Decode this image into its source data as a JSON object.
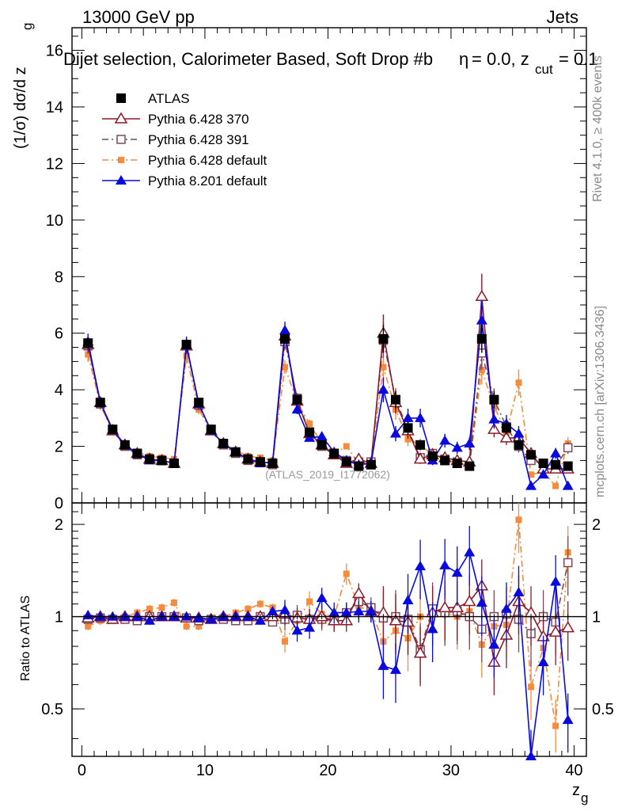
{
  "header": {
    "left": "13000 GeV pp",
    "right": "Jets"
  },
  "title": "Dijet selection, Calorimeter Based, Soft Drop #b",
  "title_suffix": "= 0.0, z",
  "title_sub": "cut",
  "title_end": "= 0.1",
  "title_eta": "η",
  "side_label_top": "Rivet 4.1.0, ≥ 400k events",
  "side_label_bottom": "mcplots.cern.ch [arXiv:1306.3436]",
  "watermark": "(ATLAS_2019_I1772062)",
  "ylabel_main": "(1/σ) dσ/d z",
  "ylabel_main_sub": "g",
  "ylabel_ratio": "Ratio to ATLAS",
  "xlabel": "z",
  "xlabel_sub": "g",
  "colors": {
    "atlas": "#000000",
    "p370": "#8b1a2a",
    "p391": "#7a4a5a",
    "pdef": "#f58b3c",
    "p8": "#0a0adc"
  },
  "chart_data": {
    "type": "line",
    "x": [
      0.5,
      1.5,
      2.5,
      3.5,
      4.5,
      5.5,
      6.5,
      7.5,
      8.5,
      9.5,
      10.5,
      11.5,
      12.5,
      13.5,
      14.5,
      15.5,
      16.5,
      17.5,
      18.5,
      19.5,
      20.5,
      21.5,
      22.5,
      23.5,
      24.5,
      25.5,
      26.5,
      27.5,
      28.5,
      29.5,
      30.5,
      31.5,
      32.5,
      33.5,
      34.5,
      35.5,
      36.5,
      37.5,
      38.5,
      39.5
    ],
    "xlim": [
      -0.8,
      41
    ],
    "xticks": [
      0,
      10,
      20,
      30,
      40
    ],
    "ylim_main": [
      0,
      16.8
    ],
    "yticks_main": [
      0,
      2,
      4,
      6,
      8,
      10,
      12,
      14,
      16
    ],
    "ylim_ratio": [
      0.35,
      2.35
    ],
    "yticks_ratio": [
      0.5,
      1,
      2
    ],
    "series": [
      {
        "name": "ATLAS",
        "key": "atlas",
        "marker": "filled-square",
        "line": "none",
        "values": [
          5.65,
          3.55,
          2.6,
          2.05,
          1.75,
          1.55,
          1.5,
          1.4,
          5.6,
          3.55,
          2.6,
          2.1,
          1.8,
          1.55,
          1.45,
          1.4,
          5.8,
          3.65,
          2.5,
          2.05,
          1.75,
          1.45,
          1.3,
          1.35,
          5.8,
          3.65,
          2.65,
          2.05,
          1.65,
          1.5,
          1.4,
          1.3,
          5.8,
          3.65,
          2.65,
          2.05,
          1.7,
          1.4,
          1.35,
          1.3
        ]
      },
      {
        "name": "Pythia 6.428 370",
        "key": "p370",
        "marker": "open-triangle",
        "line": "solid",
        "values": [
          5.6,
          3.55,
          2.55,
          2.05,
          1.75,
          1.55,
          1.5,
          1.4,
          5.55,
          3.5,
          2.55,
          2.1,
          1.8,
          1.55,
          1.45,
          1.4,
          5.9,
          3.6,
          2.45,
          2.05,
          1.7,
          1.4,
          1.55,
          1.4,
          6.0,
          3.55,
          2.55,
          1.55,
          1.7,
          1.6,
          1.5,
          1.45,
          7.3,
          2.6,
          2.3,
          2.3,
          1.75,
          1.2,
          1.2,
          1.2
        ]
      },
      {
        "name": "Pythia 6.428 391",
        "key": "p391",
        "marker": "open-square",
        "line": "dashdot",
        "values": [
          5.55,
          3.5,
          2.55,
          2.0,
          1.7,
          1.55,
          1.5,
          1.4,
          5.55,
          3.45,
          2.55,
          2.05,
          1.75,
          1.5,
          1.45,
          1.35,
          5.7,
          3.7,
          2.45,
          2.0,
          1.7,
          1.5,
          1.45,
          1.45,
          5.75,
          3.65,
          2.6,
          1.6,
          1.75,
          1.55,
          1.45,
          1.3,
          5.3,
          3.65,
          2.7,
          2.0,
          1.5,
          1.4,
          1.3,
          1.95
        ]
      },
      {
        "name": "Pythia 6.428 default",
        "key": "pdef",
        "marker": "filled-small-square",
        "line": "dashdot",
        "values": [
          5.25,
          3.45,
          2.55,
          2.05,
          1.8,
          1.65,
          1.6,
          1.55,
          5.2,
          3.3,
          2.55,
          2.1,
          1.85,
          1.65,
          1.6,
          1.5,
          4.8,
          3.55,
          2.8,
          2.1,
          1.75,
          2.0,
          1.4,
          1.4,
          4.8,
          3.3,
          2.25,
          2.05,
          1.7,
          1.55,
          1.4,
          1.35,
          4.7,
          3.4,
          2.5,
          4.25,
          1.0,
          1.1,
          0.6,
          2.1
        ]
      },
      {
        "name": "Pythia 8.201 default",
        "key": "p8",
        "marker": "filled-triangle",
        "line": "solid",
        "values": [
          5.7,
          3.55,
          2.6,
          2.05,
          1.75,
          1.5,
          1.5,
          1.4,
          5.6,
          3.5,
          2.55,
          2.1,
          1.8,
          1.55,
          1.4,
          1.45,
          6.1,
          3.3,
          2.3,
          2.35,
          1.8,
          1.5,
          1.35,
          1.4,
          4.0,
          2.45,
          3.0,
          3.0,
          1.5,
          2.2,
          1.95,
          2.1,
          6.45,
          2.95,
          2.8,
          2.45,
          0.6,
          1.0,
          1.75,
          0.6
        ]
      }
    ],
    "ratio_series": [
      {
        "key": "p370",
        "values": [
          0.99,
          1.0,
          0.98,
          1.0,
          1.0,
          1.0,
          1.0,
          1.0,
          0.99,
          0.99,
          0.98,
          1.0,
          1.0,
          1.0,
          1.0,
          1.0,
          1.02,
          0.99,
          0.98,
          1.0,
          0.97,
          0.97,
          1.19,
          1.04,
          1.03,
          0.97,
          0.96,
          0.76,
          1.03,
          1.07,
          1.07,
          1.12,
          1.26,
          0.71,
          0.87,
          1.12,
          1.03,
          0.86,
          0.89,
          0.92
        ]
      },
      {
        "key": "p391",
        "values": [
          0.98,
          0.99,
          0.98,
          0.98,
          0.97,
          1.0,
          1.0,
          1.0,
          0.99,
          0.97,
          0.98,
          0.98,
          0.97,
          0.97,
          1.0,
          0.96,
          0.98,
          1.01,
          0.98,
          0.98,
          0.97,
          1.03,
          1.12,
          1.07,
          0.99,
          1.0,
          0.98,
          0.78,
          1.06,
          1.03,
          1.04,
          1.0,
          0.91,
          1.0,
          1.02,
          0.98,
          0.88,
          1.0,
          0.96,
          1.5
        ]
      },
      {
        "key": "pdef",
        "values": [
          0.93,
          0.97,
          0.98,
          1.0,
          1.03,
          1.06,
          1.07,
          1.11,
          0.93,
          0.93,
          0.98,
          1.0,
          1.03,
          1.06,
          1.1,
          1.07,
          0.83,
          0.97,
          1.12,
          1.02,
          1.0,
          1.38,
          1.08,
          1.04,
          0.83,
          0.9,
          0.85,
          1.0,
          1.03,
          1.03,
          1.0,
          1.04,
          0.81,
          0.93,
          0.94,
          2.07,
          0.59,
          0.79,
          0.44,
          1.62
        ]
      },
      {
        "key": "p8",
        "values": [
          1.01,
          1.0,
          1.0,
          1.0,
          1.0,
          0.97,
          1.0,
          1.0,
          1.0,
          0.99,
          0.98,
          1.0,
          1.0,
          1.0,
          0.97,
          1.04,
          1.05,
          0.9,
          0.92,
          1.15,
          1.03,
          1.03,
          1.04,
          1.04,
          0.69,
          0.67,
          1.13,
          1.46,
          0.91,
          1.47,
          1.39,
          1.62,
          1.11,
          0.81,
          1.06,
          1.2,
          0.35,
          0.71,
          1.3,
          0.46
        ]
      }
    ]
  },
  "legend": {
    "atlas": "ATLAS",
    "p370": "Pythia 6.428 370",
    "p391": "Pythia 6.428 391",
    "pdef": "Pythia 6.428 default",
    "p8": "Pythia 8.201 default"
  }
}
